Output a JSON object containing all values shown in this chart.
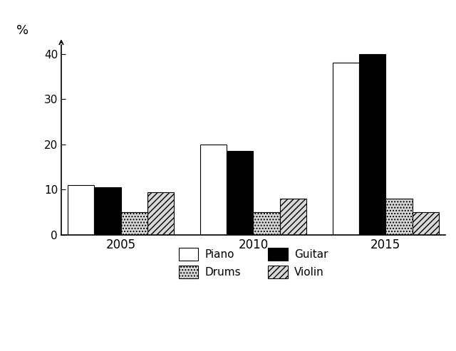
{
  "years": [
    "2005",
    "2010",
    "2015"
  ],
  "instruments": [
    "Piano",
    "Guitar",
    "Drums",
    "Violin"
  ],
  "values": {
    "Piano": [
      11,
      20,
      38
    ],
    "Guitar": [
      10.5,
      18.5,
      40
    ],
    "Drums": [
      5,
      5,
      8
    ],
    "Violin": [
      9.5,
      8,
      5
    ]
  },
  "colors": {
    "Piano": "#ffffff",
    "Guitar": "#000000",
    "Drums": "#d8d8d8",
    "Violin": "#d8d8d8"
  },
  "hatches": {
    "Piano": "",
    "Guitar": "",
    "Drums": "....",
    "Violin": "////"
  },
  "edgecolors": {
    "Piano": "#000000",
    "Guitar": "#000000",
    "Drums": "#000000",
    "Violin": "#000000"
  },
  "ylabel": "%",
  "ylim": [
    0,
    42
  ],
  "yticks": [
    0,
    10,
    20,
    30,
    40
  ],
  "bar_width": 0.2,
  "legend_order": [
    "Piano",
    "Drums",
    "Guitar",
    "Violin"
  ],
  "background_color": "#ffffff"
}
